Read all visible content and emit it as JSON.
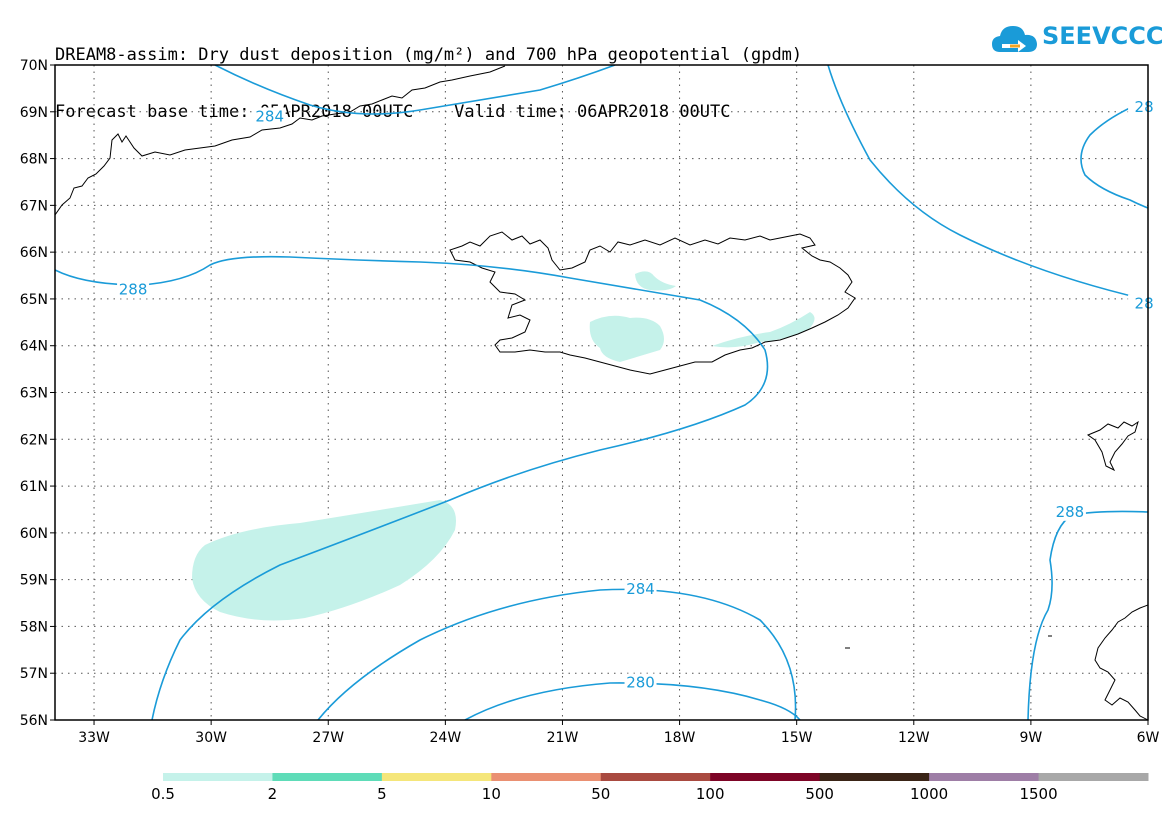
{
  "header": {
    "title_line1": "DREAM8-assim: Dry dust deposition (mg/m²) and 700 hPa geopotential (gpdm)",
    "title_line2": "Forecast base time: 05APR2018 00UTC    Valid time: 06APR2018 00UTC"
  },
  "logo": {
    "text": "SEEVCCC",
    "color": "#1a9bd8"
  },
  "map": {
    "lon_range": [
      -34,
      -6
    ],
    "lat_range": [
      56,
      70
    ],
    "lon_ticks": [
      {
        "v": -33,
        "label": "33W"
      },
      {
        "v": -30,
        "label": "30W"
      },
      {
        "v": -27,
        "label": "27W"
      },
      {
        "v": -24,
        "label": "24W"
      },
      {
        "v": -21,
        "label": "21W"
      },
      {
        "v": -18,
        "label": "18W"
      },
      {
        "v": -15,
        "label": "15W"
      },
      {
        "v": -12,
        "label": "12W"
      },
      {
        "v": -9,
        "label": "9W"
      },
      {
        "v": -6,
        "label": "6W"
      }
    ],
    "lat_ticks": [
      {
        "v": 56,
        "label": "56N"
      },
      {
        "v": 57,
        "label": "57N"
      },
      {
        "v": 58,
        "label": "58N"
      },
      {
        "v": 59,
        "label": "59N"
      },
      {
        "v": 60,
        "label": "60N"
      },
      {
        "v": 61,
        "label": "61N"
      },
      {
        "v": 62,
        "label": "62N"
      },
      {
        "v": 63,
        "label": "63N"
      },
      {
        "v": 64,
        "label": "64N"
      },
      {
        "v": 65,
        "label": "65N"
      },
      {
        "v": 66,
        "label": "66N"
      },
      {
        "v": 67,
        "label": "67N"
      },
      {
        "v": 68,
        "label": "68N"
      },
      {
        "v": 69,
        "label": "69N"
      },
      {
        "v": 70,
        "label": "70N"
      }
    ],
    "contour_labels": [
      {
        "text": "284",
        "lon": -28.5,
        "lat": 68.9
      },
      {
        "text": "288",
        "lon": -32.0,
        "lat": 65.2
      },
      {
        "text": "284",
        "lon": -19.0,
        "lat": 58.8
      },
      {
        "text": "280",
        "lon": -19.0,
        "lat": 56.8
      },
      {
        "text": "288",
        "lon": -8.0,
        "lat": 60.45
      },
      {
        "text": "28",
        "lon": -6.1,
        "lat": 69.1
      },
      {
        "text": "28",
        "lon": -6.1,
        "lat": 64.9
      }
    ],
    "contour_color": "#1a9bd8",
    "dust_color": "#c5f2ea"
  },
  "colorbar": {
    "segments": [
      {
        "color": "#c5f2ea"
      },
      {
        "color": "#5edcb8"
      },
      {
        "color": "#f5e67a"
      },
      {
        "color": "#ea9072"
      },
      {
        "color": "#a94a40"
      },
      {
        "color": "#7d0426"
      },
      {
        "color": "#3a2416"
      },
      {
        "color": "#9e7ea6"
      },
      {
        "color": "#a8a8a8"
      }
    ],
    "labels": [
      "0.5",
      "2",
      "5",
      "10",
      "50",
      "100",
      "500",
      "1000",
      "1500"
    ]
  }
}
